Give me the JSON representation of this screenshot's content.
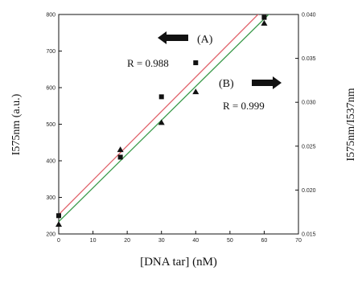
{
  "chart_data": {
    "type": "scatter",
    "xlabel": "[DNA tar] (nM)",
    "ylabel_left": "I575nm (a.u.)",
    "ylabel_right": "I575nm/I537nm",
    "xlim": [
      0,
      70
    ],
    "ylim_left": [
      200,
      800
    ],
    "ylim_right": [
      0.015,
      0.04
    ],
    "x_ticks": [
      "0",
      "10",
      "20",
      "30",
      "40",
      "50",
      "60",
      "70"
    ],
    "y_ticks_left": [
      "200",
      "300",
      "400",
      "500",
      "600",
      "700",
      "800"
    ],
    "y_ticks_right": [
      "0.015",
      "0.020",
      "0.025",
      "0.030",
      "0.035",
      "0.040"
    ],
    "series": [
      {
        "axis": "left",
        "marker": "square",
        "color": "#111111",
        "line_color": "#e0626a",
        "x": [
          0,
          18,
          30,
          40,
          60
        ],
        "y": [
          250,
          410,
          575,
          668,
          792
        ],
        "fit": {
          "slope": 9.4,
          "intercept": 253
        },
        "r_label": "R = 0.988",
        "tag": "(A)"
      },
      {
        "axis": "right",
        "marker": "triangle",
        "color": "#111111",
        "line_color": "#3a9a4a",
        "x": [
          0,
          18,
          30,
          40,
          60
        ],
        "y": [
          0.0161,
          0.0246,
          0.0277,
          0.0312,
          0.039
        ],
        "fit": {
          "slope": 0.000385,
          "intercept": 0.0164
        },
        "r_label": "R = 0.999",
        "tag": "(B)"
      }
    ]
  }
}
